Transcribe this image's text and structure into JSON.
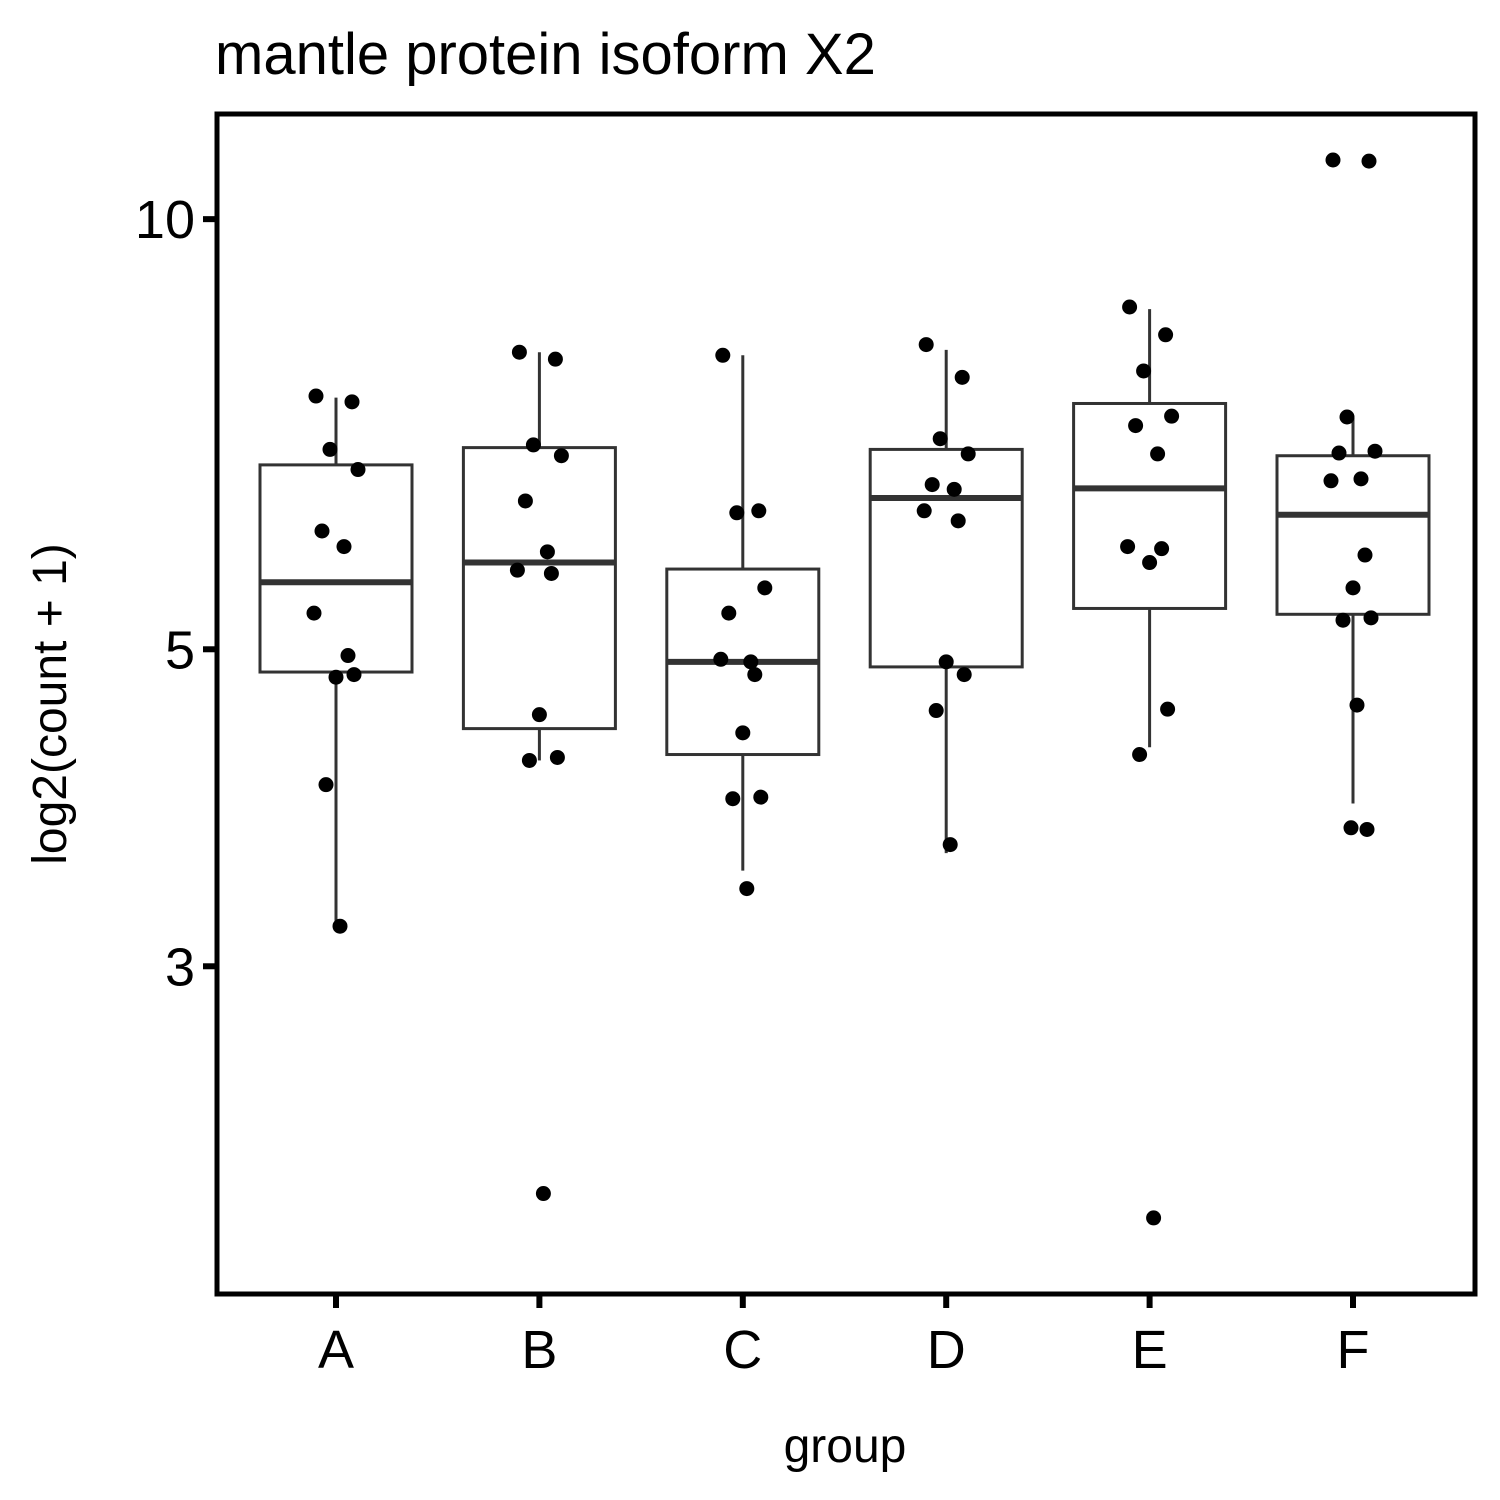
{
  "chart_data": {
    "type": "boxplot",
    "title": "mantle protein isoform X2",
    "xlabel": "group",
    "ylabel": "log2(count + 1)",
    "y_scale": "log",
    "ylim": [
      1.93,
      11.0
    ],
    "y_ticks": [
      3,
      5,
      10
    ],
    "y_tick_labels": [
      "3",
      "5",
      "10"
    ],
    "categories": [
      "A",
      "B",
      "C",
      "D",
      "E",
      "F"
    ],
    "grid": false,
    "legend": "none",
    "box_color": "#333333",
    "point_color": "#000000",
    "boxes": [
      {
        "group": "A",
        "whisker_low": 3.2,
        "q1": 4.82,
        "median": 5.57,
        "q3": 6.73,
        "whisker_high": 7.5
      },
      {
        "group": "B",
        "whisker_low": 4.18,
        "q1": 4.4,
        "median": 5.75,
        "q3": 6.92,
        "whisker_high": 8.07
      },
      {
        "group": "C",
        "whisker_low": 3.5,
        "q1": 4.22,
        "median": 4.9,
        "q3": 5.69,
        "whisker_high": 8.03
      },
      {
        "group": "D",
        "whisker_low": 3.6,
        "q1": 4.86,
        "median": 6.38,
        "q3": 6.9,
        "whisker_high": 8.1
      },
      {
        "group": "E",
        "whisker_low": 4.27,
        "q1": 5.34,
        "median": 6.48,
        "q3": 7.43,
        "whisker_high": 8.65
      },
      {
        "group": "F",
        "whisker_low": 3.9,
        "q1": 5.29,
        "median": 6.21,
        "q3": 6.83,
        "whisker_high": 7.26
      }
    ],
    "points": [
      {
        "group": "A",
        "y": [
          7.52,
          7.45,
          6.9,
          6.68,
          6.05,
          5.9,
          5.3,
          4.95,
          4.78,
          4.8,
          4.02,
          3.2
        ]
      },
      {
        "group": "B",
        "y": [
          8.07,
          7.98,
          6.95,
          6.83,
          6.35,
          5.85,
          5.68,
          5.65,
          4.5,
          4.2,
          4.18,
          2.08
        ]
      },
      {
        "group": "C",
        "y": [
          8.03,
          6.25,
          6.23,
          5.52,
          5.3,
          4.9,
          4.92,
          4.8,
          4.37,
          3.94,
          3.93,
          3.4
        ]
      },
      {
        "group": "D",
        "y": [
          8.17,
          7.75,
          7.02,
          6.85,
          6.52,
          6.47,
          6.25,
          6.15,
          4.9,
          4.8,
          4.53,
          3.65
        ]
      },
      {
        "group": "E",
        "y": [
          8.68,
          8.3,
          7.83,
          7.28,
          7.17,
          6.85,
          5.9,
          5.88,
          5.75,
          4.54,
          4.22,
          2.0
        ]
      },
      {
        "group": "F",
        "y": [
          11.0,
          10.98,
          7.27,
          6.88,
          6.86,
          6.58,
          6.56,
          5.82,
          5.52,
          5.26,
          5.24,
          4.57,
          3.75,
          3.74
        ]
      }
    ]
  }
}
